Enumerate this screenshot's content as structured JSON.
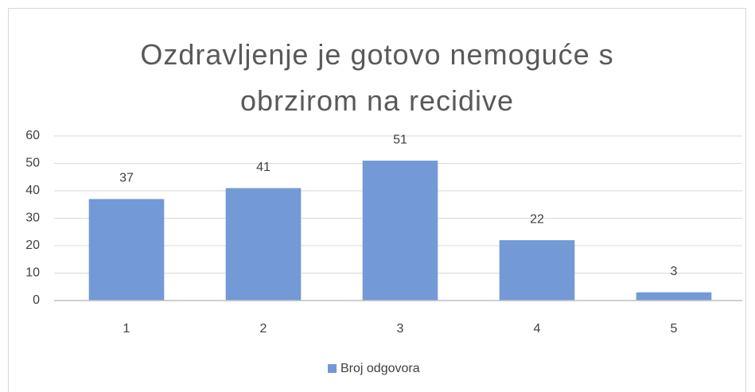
{
  "chart_data": {
    "type": "bar",
    "title": "Ozdravljenje je gotovo nemoguće s obrzirom na recidive",
    "categories": [
      "1",
      "2",
      "3",
      "4",
      "5"
    ],
    "series": [
      {
        "name": "Broj odgovora",
        "color": "#7399d6",
        "values": [
          37,
          41,
          51,
          22,
          3
        ]
      }
    ],
    "ylim": [
      0,
      60
    ],
    "yticks": [
      0,
      10,
      20,
      30,
      40,
      50,
      60
    ],
    "grid": true,
    "legend": "bottom"
  }
}
